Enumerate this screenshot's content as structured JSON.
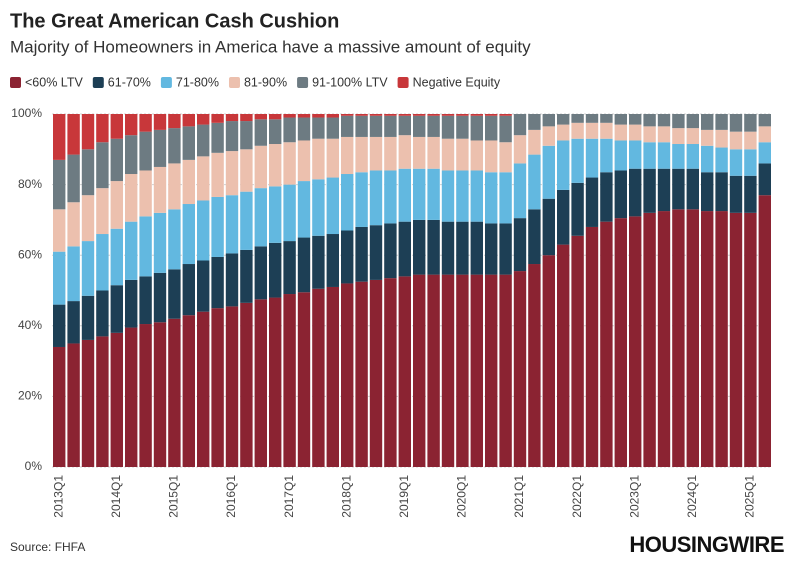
{
  "chart_data": {
    "type": "stacked_bar",
    "title": "The Great American Cash Cushion",
    "subtitle": "Majority of Homeowners in America have a massive amount of equity",
    "source": "Source: FHFA",
    "brand": "HOUSINGWIRE",
    "categories": [
      "2013Q1",
      null,
      null,
      null,
      "2014Q1",
      null,
      null,
      null,
      "2015Q1",
      null,
      null,
      null,
      "2016Q1",
      null,
      null,
      null,
      "2017Q1",
      null,
      null,
      null,
      "2018Q1",
      null,
      null,
      null,
      "2019Q1",
      null,
      null,
      null,
      "2020Q1",
      null,
      null,
      null,
      "2021Q1",
      null,
      null,
      null,
      "2022Q1",
      null,
      null,
      null,
      "2023Q1",
      null,
      null,
      null,
      "2024Q1",
      null,
      null,
      null,
      "2025Q1",
      null
    ],
    "series": [
      {
        "name": "<60% LTV",
        "color": "#8b2332",
        "values": [
          34,
          35,
          36,
          37,
          38,
          39.5,
          40.5,
          41,
          42,
          43,
          44,
          45,
          45.5,
          46.5,
          47.5,
          48,
          49,
          49.5,
          50.5,
          51,
          52,
          52.5,
          53,
          53.5,
          54,
          54.5,
          54.5,
          54.5,
          54.5,
          54.5,
          54.5,
          54.5,
          55.5,
          57.5,
          60,
          63,
          65.5,
          68,
          69.5,
          70.5,
          71,
          72,
          72.5,
          73,
          73,
          72.5,
          72.5,
          72,
          72,
          77
        ]
      },
      {
        "name": "61-70%",
        "color": "#1d3f55",
        "values": [
          12,
          12,
          12.5,
          13,
          13.5,
          13.5,
          13.5,
          14,
          14,
          14.5,
          14.5,
          14.5,
          15,
          15,
          15,
          15.5,
          15,
          15.5,
          15,
          15,
          15,
          15.5,
          15.5,
          15.5,
          15.5,
          15.5,
          15.5,
          15,
          15,
          15,
          14.5,
          14.5,
          15,
          15.5,
          16,
          15.5,
          15,
          14,
          14,
          13.5,
          13.5,
          12.5,
          12,
          11.5,
          11.5,
          11,
          11,
          10.5,
          10.5,
          9
        ]
      },
      {
        "name": "71-80%",
        "color": "#62b8e0",
        "values": [
          15,
          15.5,
          15.5,
          16,
          16,
          16.5,
          17,
          17,
          17,
          17,
          17,
          17,
          16.5,
          16.5,
          16.5,
          16,
          16,
          16,
          16,
          16,
          16,
          15.5,
          15.5,
          15,
          15,
          14.5,
          14.5,
          14.5,
          14.5,
          14.5,
          14.5,
          14.5,
          15.5,
          15.5,
          15,
          14,
          12.5,
          11,
          9.5,
          8.5,
          8,
          7.5,
          7.5,
          7,
          7,
          7.5,
          7,
          7.5,
          7.5,
          6
        ]
      },
      {
        "name": "81-90%",
        "color": "#ecc0ae",
        "values": [
          12,
          12.5,
          13,
          13,
          13.5,
          13.5,
          13,
          13,
          13,
          12.5,
          12.5,
          12.5,
          12.5,
          12,
          12,
          12,
          12,
          11.5,
          11.5,
          11,
          10.5,
          10,
          9.5,
          9.5,
          9.5,
          9,
          9,
          9,
          9,
          8.5,
          9,
          8.5,
          8,
          7,
          5.5,
          4.5,
          4.5,
          4.5,
          4.5,
          4.5,
          4.5,
          4.5,
          4.5,
          4.5,
          4.5,
          4.5,
          5,
          5,
          5,
          4.5
        ]
      },
      {
        "name": "91-100% LTV",
        "color": "#6d7b82",
        "values": [
          14,
          13.5,
          13,
          13,
          12,
          11,
          11,
          10.5,
          10,
          9.5,
          9,
          8.5,
          8.5,
          8,
          7.5,
          7,
          7,
          6.5,
          6,
          6,
          6,
          6,
          6,
          6,
          5.5,
          6,
          6,
          6.5,
          6.5,
          7,
          7,
          7.5,
          6,
          4.5,
          3.5,
          3,
          2.5,
          2.5,
          2.5,
          3,
          3,
          3.5,
          3.5,
          4,
          4,
          4.5,
          4.5,
          5,
          5,
          3.5
        ]
      },
      {
        "name": "Negative Equity",
        "color": "#c8373a",
        "values": [
          13,
          11.5,
          10,
          8,
          7,
          6,
          5,
          4.5,
          4,
          3.5,
          3,
          2.5,
          2,
          2,
          1.5,
          1.5,
          1,
          1,
          1,
          1,
          0.5,
          0.5,
          0.5,
          0.5,
          0.5,
          0.5,
          0.5,
          0.5,
          0.5,
          0.5,
          0.5,
          0.5,
          0,
          0,
          0,
          0,
          0,
          0,
          0,
          0,
          0,
          0,
          0,
          0,
          0,
          0,
          0,
          0,
          0,
          0
        ]
      }
    ],
    "ylim": [
      0,
      100
    ],
    "yticks": [
      {
        "value": 0,
        "label": "0%"
      },
      {
        "value": 20,
        "label": "20%"
      },
      {
        "value": 40,
        "label": "40%"
      },
      {
        "value": 60,
        "label": "60%"
      },
      {
        "value": 80,
        "label": "80%"
      },
      {
        "value": 100,
        "label": "100%"
      }
    ],
    "grid": true
  }
}
